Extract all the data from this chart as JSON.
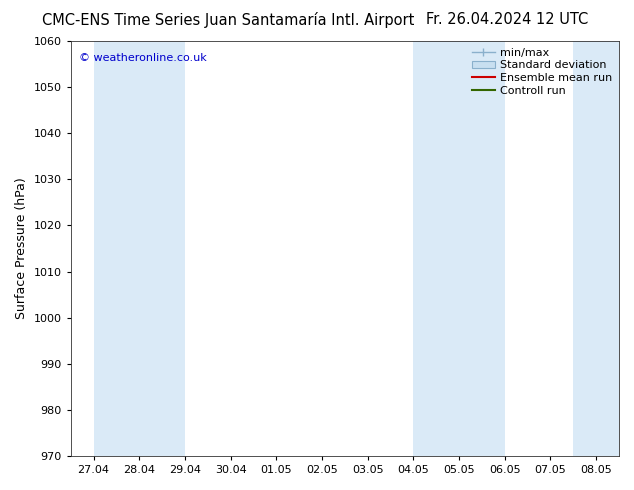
{
  "title_left": "CMC-ENS Time Series Juan Santamaría Intl. Airport",
  "title_right": "Fr. 26.04.2024 12 UTC",
  "ylabel": "Surface Pressure (hPa)",
  "ylim": [
    970,
    1060
  ],
  "yticks": [
    970,
    980,
    990,
    1000,
    1010,
    1020,
    1030,
    1040,
    1050,
    1060
  ],
  "xlabels": [
    "27.04",
    "28.04",
    "29.04",
    "30.04",
    "01.05",
    "02.05",
    "03.05",
    "04.05",
    "05.05",
    "06.05",
    "07.05",
    "08.05"
  ],
  "band_color": "#daeaf7",
  "background_color": "#ffffff",
  "copyright_text": "© weatheronline.co.uk",
  "copyright_color": "#0000cc",
  "title_fontsize": 10.5,
  "tick_fontsize": 8,
  "ylabel_fontsize": 9,
  "legend_fontsize": 8,
  "minmax_color": "#8ab0cc",
  "stddev_color": "#c8dff0",
  "ensemble_color": "#cc0000",
  "control_color": "#336600"
}
